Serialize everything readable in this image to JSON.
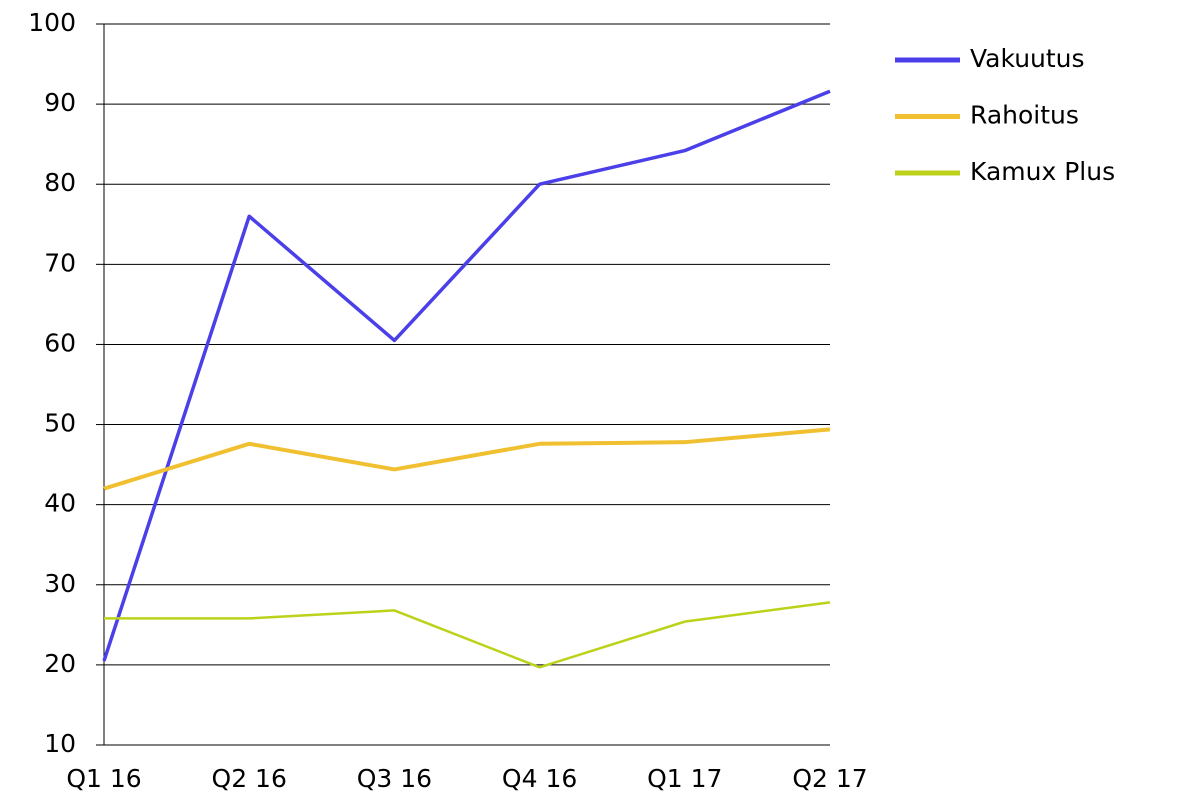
{
  "chart_data": {
    "type": "line",
    "categories": [
      "Q1 16",
      "Q2 16",
      "Q3 16",
      "Q4 16",
      "Q1 17",
      "Q2 17"
    ],
    "series": [
      {
        "name": "Vakuutus",
        "color": "#4a3fe8",
        "values": [
          20.5,
          76,
          60.5,
          80,
          84.2,
          91.6
        ]
      },
      {
        "name": "Rahoitus",
        "color": "#f0c030",
        "values": [
          42,
          47.6,
          44.4,
          47.6,
          47.8,
          49.4
        ]
      },
      {
        "name": "Kamux Plus",
        "color": "#bcd21a",
        "values": [
          25.8,
          25.8,
          26.8,
          19.7,
          25.4,
          27.8
        ]
      }
    ],
    "ylim": [
      10,
      100
    ],
    "yticks": [
      10,
      20,
      30,
      40,
      50,
      60,
      70,
      80,
      90,
      100
    ],
    "grid": true,
    "legend": "right"
  }
}
